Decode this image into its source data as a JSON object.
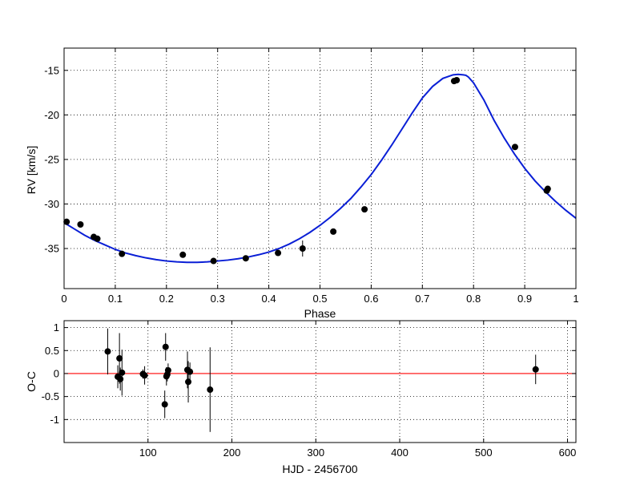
{
  "chart_data": [
    {
      "type": "scatter",
      "xlabel": "Phase",
      "ylabel": "RV [km/s]",
      "xlim": [
        0,
        1
      ],
      "ylim": [
        -39.5,
        -12.5
      ],
      "xticks": [
        0,
        0.1,
        0.2,
        0.3,
        0.4,
        0.5,
        0.6,
        0.7,
        0.8,
        0.9,
        1
      ],
      "xtick_labels": [
        "0",
        "0.1",
        "0.2",
        "0.3",
        "0.4",
        "0.5",
        "0.6",
        "0.7",
        "0.8",
        "0.9",
        "1"
      ],
      "yticks": [
        -35,
        -30,
        -25,
        -20,
        -15
      ],
      "ytick_labels": [
        "-35",
        "-30",
        "-25",
        "-20",
        "-15"
      ],
      "grid": true,
      "colors": {
        "points": "#000000",
        "fit": "#0a1fd6"
      },
      "points": [
        {
          "x": 0.005,
          "y": -32.0,
          "err": 0.3
        },
        {
          "x": 0.032,
          "y": -32.3,
          "err": 0.3
        },
        {
          "x": 0.058,
          "y": -33.7,
          "err": 0.3
        },
        {
          "x": 0.065,
          "y": -33.9,
          "err": 0.3
        },
        {
          "x": 0.113,
          "y": -35.6,
          "err": 0.3
        },
        {
          "x": 0.232,
          "y": -35.7,
          "err": 0.3
        },
        {
          "x": 0.292,
          "y": -36.4,
          "err": 0.3
        },
        {
          "x": 0.355,
          "y": -36.1,
          "err": 0.3
        },
        {
          "x": 0.418,
          "y": -35.5,
          "err": 0.3
        },
        {
          "x": 0.466,
          "y": -35.0,
          "err": 0.9
        },
        {
          "x": 0.526,
          "y": -33.1,
          "err": 0.3
        },
        {
          "x": 0.587,
          "y": -30.6,
          "err": 0.3
        },
        {
          "x": 0.762,
          "y": -16.2,
          "err": 0.3
        },
        {
          "x": 0.767,
          "y": -16.1,
          "err": 0.3
        },
        {
          "x": 0.881,
          "y": -23.6,
          "err": 0.3
        },
        {
          "x": 0.943,
          "y": -28.5,
          "err": 0.3
        },
        {
          "x": 0.945,
          "y": -28.3,
          "err": 0.3
        }
      ],
      "fit_curve": {
        "x": [
          0.0,
          0.02,
          0.04,
          0.06,
          0.08,
          0.1,
          0.12,
          0.14,
          0.16,
          0.18,
          0.2,
          0.22,
          0.24,
          0.26,
          0.28,
          0.3,
          0.32,
          0.34,
          0.36,
          0.38,
          0.4,
          0.42,
          0.44,
          0.46,
          0.48,
          0.5,
          0.52,
          0.54,
          0.56,
          0.58,
          0.6,
          0.62,
          0.64,
          0.66,
          0.68,
          0.7,
          0.72,
          0.74,
          0.76,
          0.77,
          0.78,
          0.785,
          0.79,
          0.8,
          0.82,
          0.84,
          0.86,
          0.88,
          0.9,
          0.92,
          0.94,
          0.96,
          0.98,
          1.0
        ],
        "y": [
          -32.1,
          -32.8,
          -33.5,
          -34.1,
          -34.6,
          -35.1,
          -35.5,
          -35.8,
          -36.05,
          -36.25,
          -36.4,
          -36.5,
          -36.55,
          -36.55,
          -36.5,
          -36.4,
          -36.3,
          -36.15,
          -35.95,
          -35.7,
          -35.4,
          -35.0,
          -34.5,
          -33.9,
          -33.2,
          -32.4,
          -31.5,
          -30.5,
          -29.4,
          -28.1,
          -26.7,
          -25.1,
          -23.4,
          -21.6,
          -19.8,
          -18.1,
          -16.8,
          -15.9,
          -15.5,
          -15.45,
          -15.5,
          -15.55,
          -15.75,
          -16.4,
          -18.3,
          -20.6,
          -22.6,
          -24.4,
          -26.0,
          -27.4,
          -28.6,
          -29.7,
          -30.7,
          -31.6
        ]
      }
    },
    {
      "type": "scatter",
      "xlabel": "HJD - 2456700",
      "ylabel": "O-C",
      "xlim": [
        0,
        610
      ],
      "ylim": [
        -1.5,
        1.15
      ],
      "xticks": [
        100,
        200,
        300,
        400,
        500,
        600
      ],
      "xtick_labels": [
        "100",
        "200",
        "300",
        "400",
        "500",
        "600"
      ],
      "yticks": [
        -1,
        -0.5,
        0,
        0.5,
        1
      ],
      "ytick_labels": [
        "-1",
        "-0.5",
        "0",
        "0.5",
        "1"
      ],
      "grid": true,
      "reference_line": 0,
      "colors": {
        "points": "#000000",
        "reference_line": "#ff0000"
      },
      "points": [
        {
          "x": 52,
          "y": 0.48,
          "err": 0.5
        },
        {
          "x": 64,
          "y": -0.07,
          "err": 0.25
        },
        {
          "x": 66,
          "y": 0.33,
          "err": 0.55
        },
        {
          "x": 67,
          "y": -0.12,
          "err": 0.25
        },
        {
          "x": 69,
          "y": 0.02,
          "err": 0.5
        },
        {
          "x": 94,
          "y": -0.01,
          "err": 0.1
        },
        {
          "x": 96,
          "y": -0.04,
          "err": 0.2
        },
        {
          "x": 120,
          "y": -0.67,
          "err": 0.3
        },
        {
          "x": 121,
          "y": 0.58,
          "err": 0.3
        },
        {
          "x": 122,
          "y": -0.06,
          "err": 0.2
        },
        {
          "x": 123,
          "y": -0.02,
          "err": 0.15
        },
        {
          "x": 124,
          "y": 0.07,
          "err": 0.15
        },
        {
          "x": 147,
          "y": 0.08,
          "err": 0.4
        },
        {
          "x": 148,
          "y": -0.18,
          "err": 0.45
        },
        {
          "x": 150,
          "y": 0.04,
          "err": 0.2
        },
        {
          "x": 174,
          "y": -0.35,
          "err": 0.92
        },
        {
          "x": 562,
          "y": 0.09,
          "err": 0.32
        }
      ]
    }
  ]
}
